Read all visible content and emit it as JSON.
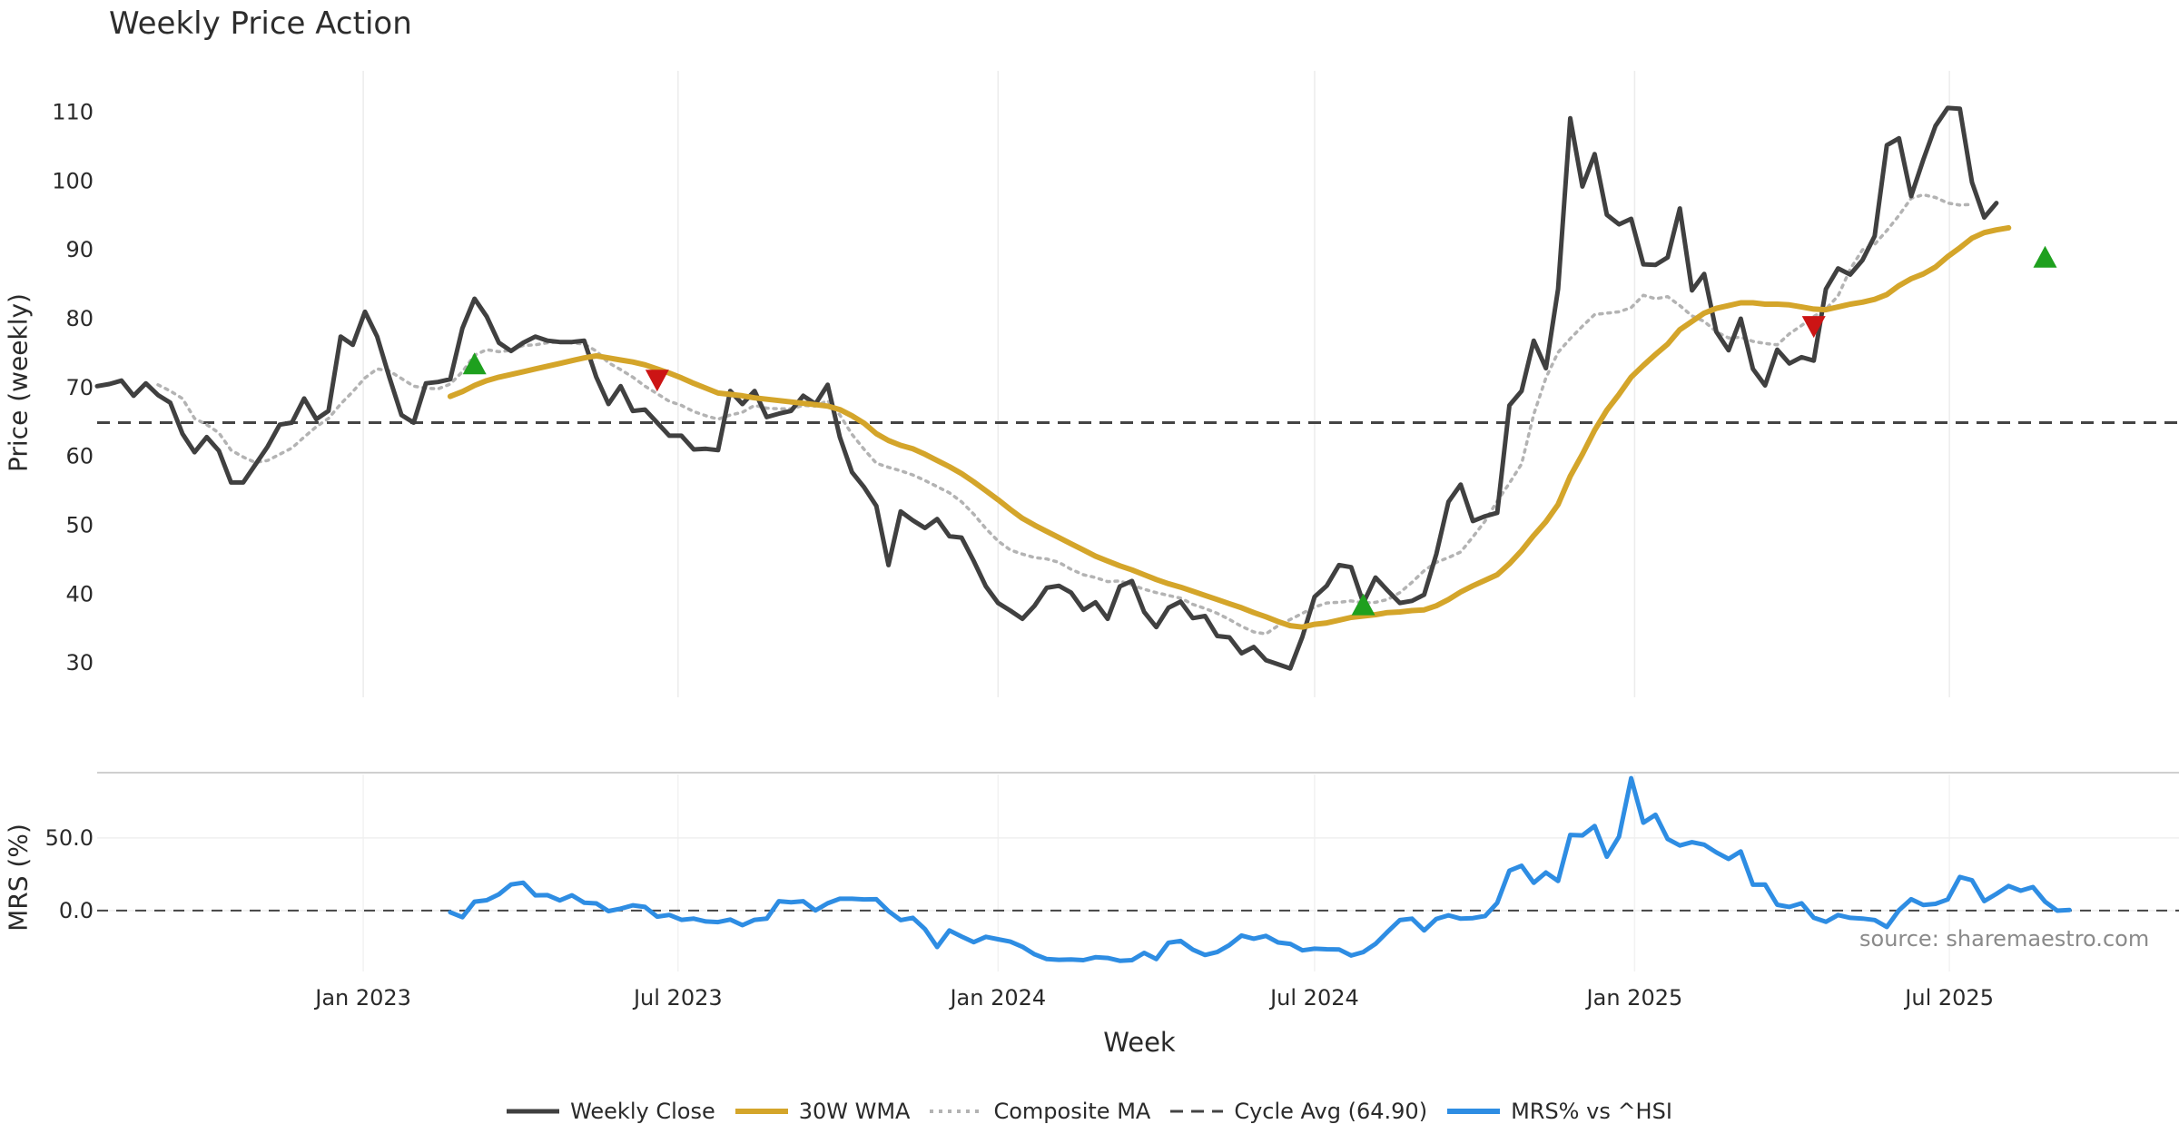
{
  "chart_data": {
    "type": "line",
    "title": "Weekly Price Action",
    "xlabel": "Week",
    "ylabel": "Price (weekly)",
    "ylabel_secondary": "MRS (%)",
    "x_tick_labels": [
      "Jan 2023",
      "Jul 2023",
      "Jan 2024",
      "Jul 2024",
      "Jan 2025",
      "Jul 2025"
    ],
    "y_ticks": [
      30,
      40,
      50,
      60,
      70,
      80,
      90,
      100,
      110
    ],
    "y_ticks_secondary": [
      "0.0",
      "50.0"
    ],
    "ylim": [
      25,
      116
    ],
    "ylim_secondary": [
      -42,
      95
    ],
    "week_start": "2022-08-01",
    "weeks": 172,
    "series": [
      {
        "name": "Weekly Close",
        "color": "#404040",
        "values": [
          70.2,
          70.5,
          71.0,
          68.8,
          70.6,
          68.9,
          67.8,
          63.3,
          60.6,
          62.8,
          60.8,
          56.2,
          56.2,
          58.8,
          61.4,
          64.6,
          64.9,
          68.4,
          65.4,
          66.6,
          77.4,
          76.2,
          81.0,
          77.4,
          71.5,
          66.0,
          64.9,
          70.6,
          70.8,
          71.2,
          78.6,
          82.9,
          80.3,
          76.5,
          75.3,
          76.5,
          77.4,
          76.8,
          76.6,
          76.6,
          76.8,
          71.5,
          67.6,
          70.2,
          66.6,
          66.8,
          64.9,
          63.0,
          63.0,
          61.0,
          61.1,
          60.9,
          69.5,
          67.6,
          69.5,
          65.7,
          66.2,
          66.6,
          68.8,
          67.6,
          70.4,
          62.8,
          57.7,
          55.5,
          52.8,
          44.2,
          52.0,
          50.7,
          49.6,
          50.9,
          48.4,
          48.2,
          44.8,
          41.1,
          38.7,
          37.6,
          36.4,
          38.3,
          40.9,
          41.2,
          40.2,
          37.7,
          38.8,
          36.4,
          41.1,
          41.9,
          37.4,
          35.2,
          38.0,
          38.9,
          36.5,
          36.8,
          33.9,
          33.7,
          31.4,
          32.3,
          30.4,
          29.8,
          29.2,
          33.8,
          39.6,
          41.2,
          44.2,
          43.9,
          38.7,
          42.4,
          40.5,
          38.7,
          39.0,
          39.9,
          45.8,
          53.4,
          55.9,
          50.6,
          51.3,
          51.8,
          67.4,
          69.5,
          76.8,
          72.8,
          84.3,
          109.1,
          99.2,
          103.9,
          95.1,
          93.7,
          94.5,
          87.9,
          87.8,
          88.9,
          96.0,
          84.1,
          86.5,
          78.1,
          75.4,
          80.0,
          72.7,
          70.3,
          75.5,
          73.5,
          74.4,
          73.9,
          84.3,
          87.3,
          86.4,
          88.5,
          92.0,
          105.2,
          106.2,
          97.8,
          103.1,
          108.0,
          110.6,
          110.5,
          99.8,
          94.7,
          96.8
        ]
      },
      {
        "name": "30W WMA",
        "color": "#d4a52a",
        "values": [
          null,
          null,
          null,
          null,
          null,
          null,
          null,
          null,
          null,
          null,
          null,
          null,
          null,
          null,
          null,
          null,
          null,
          null,
          null,
          null,
          null,
          null,
          null,
          null,
          null,
          null,
          null,
          null,
          null,
          68.7,
          69.4,
          70.3,
          71.0,
          71.5,
          71.9,
          72.3,
          72.7,
          73.1,
          73.5,
          73.9,
          74.3,
          74.6,
          74.3,
          74.0,
          73.7,
          73.3,
          72.7,
          72.1,
          71.4,
          70.6,
          69.9,
          69.2,
          69.0,
          68.8,
          68.5,
          68.3,
          68.1,
          67.9,
          67.7,
          67.5,
          67.3,
          66.8,
          65.9,
          64.8,
          63.3,
          62.3,
          61.6,
          61.1,
          60.3,
          59.4,
          58.5,
          57.5,
          56.3,
          55.0,
          53.7,
          52.3,
          51.0,
          50.0,
          49.1,
          48.2,
          47.3,
          46.4,
          45.5,
          44.8,
          44.1,
          43.5,
          42.8,
          42.1,
          41.5,
          41.0,
          40.4,
          39.8,
          39.2,
          38.6,
          38.0,
          37.3,
          36.7,
          36.0,
          35.4,
          35.2,
          35.6,
          35.8,
          36.2,
          36.6,
          36.8,
          37.0,
          37.3,
          37.4,
          37.6,
          37.7,
          38.3,
          39.2,
          40.3,
          41.2,
          42.0,
          42.8,
          44.4,
          46.3,
          48.5,
          50.5,
          53.0,
          57.1,
          60.3,
          63.8,
          66.7,
          69.0,
          71.5,
          73.2,
          74.8,
          76.3,
          78.4,
          79.6,
          80.8,
          81.5,
          81.9,
          82.3,
          82.3,
          82.1,
          82.1,
          82.0,
          81.7,
          81.4,
          81.3,
          81.7,
          82.1,
          82.4,
          82.8,
          83.5,
          84.8,
          85.8,
          86.5,
          87.5,
          89.0,
          90.3,
          91.7,
          92.5,
          92.9,
          93.2
        ]
      },
      {
        "name": "Composite MA",
        "color": "#b3b3b3",
        "dash": "3,6",
        "values": [
          null,
          null,
          null,
          null,
          null,
          70.4,
          69.5,
          68.4,
          65.5,
          64.6,
          63.4,
          60.9,
          59.9,
          59.1,
          59.4,
          60.3,
          61.2,
          62.8,
          64.3,
          65.5,
          67.6,
          69.4,
          71.4,
          72.7,
          72.4,
          71.3,
          70.2,
          69.9,
          69.8,
          70.5,
          72.3,
          74.7,
          75.5,
          75.2,
          75.4,
          76.1,
          76.2,
          76.5,
          76.6,
          76.5,
          76.3,
          75.3,
          73.6,
          72.6,
          71.5,
          70.2,
          69.1,
          68.0,
          67.4,
          66.5,
          65.9,
          65.4,
          66.0,
          66.4,
          67.4,
          67.0,
          66.9,
          66.9,
          67.4,
          67.3,
          68.1,
          66.0,
          63.2,
          61.0,
          59.0,
          58.4,
          57.9,
          57.3,
          56.5,
          55.6,
          54.7,
          53.4,
          51.6,
          49.5,
          47.7,
          46.4,
          45.8,
          45.3,
          45.1,
          44.6,
          43.6,
          42.8,
          42.4,
          41.8,
          41.9,
          41.3,
          40.7,
          40.2,
          39.8,
          39.4,
          38.5,
          37.9,
          37.2,
          36.3,
          35.3,
          34.5,
          34.2,
          35.4,
          36.3,
          37.2,
          38.1,
          38.7,
          38.8,
          39.0,
          38.7,
          38.8,
          39.2,
          40.2,
          41.7,
          43.4,
          44.6,
          45.3,
          46.1,
          48.3,
          50.6,
          53.5,
          56.1,
          58.9,
          66.1,
          71.4,
          75.1,
          77.1,
          78.9,
          80.6,
          80.8,
          81.0,
          81.6,
          83.4,
          82.9,
          83.2,
          81.9,
          80.4,
          79.6,
          78.1,
          77.2,
          77.3,
          76.7,
          76.4,
          76.2,
          77.8,
          79.0,
          80.3,
          81.4,
          83.3,
          87.2,
          90.0,
          90.8,
          92.8,
          95.0,
          97.5,
          98.0,
          97.6,
          96.8,
          96.5,
          96.6
        ]
      },
      {
        "name": "MRS% vs ^HSI",
        "color": "#2e8de3",
        "axis": "secondary",
        "values": [
          null,
          null,
          null,
          null,
          null,
          null,
          null,
          null,
          null,
          null,
          null,
          null,
          null,
          null,
          null,
          null,
          null,
          null,
          null,
          null,
          null,
          null,
          null,
          null,
          null,
          null,
          null,
          null,
          null,
          -1.2,
          -4.6,
          6.1,
          7.1,
          11.2,
          17.9,
          19.2,
          10.5,
          10.6,
          7.0,
          10.5,
          5.4,
          4.9,
          -0.4,
          1.3,
          3.6,
          2.5,
          -4.2,
          -3.0,
          -6.4,
          -5.6,
          -7.5,
          -8.0,
          -6.2,
          -10.1,
          -6.4,
          -5.6,
          6.4,
          5.7,
          6.4,
          0.1,
          5.0,
          8.1,
          8.1,
          7.7,
          7.8,
          -0.4,
          -6.6,
          -5.0,
          -12.8,
          -25.1,
          -13.7,
          -17.9,
          -21.8,
          -18.1,
          -19.8,
          -21.4,
          -25.0,
          -30.2,
          -33.4,
          -33.9,
          -33.7,
          -34.2,
          -32.2,
          -32.7,
          -34.6,
          -34.2,
          -29.2,
          -33.4,
          -22.2,
          -21.0,
          -26.9,
          -30.6,
          -28.6,
          -23.8,
          -17.2,
          -19.4,
          -17.5,
          -22.0,
          -23.0,
          -27.4,
          -26.3,
          -26.7,
          -26.8,
          -31.0,
          -28.6,
          -23.0,
          -14.6,
          -6.6,
          -5.6,
          -13.7,
          -5.8,
          -3.3,
          -5.6,
          -5.2,
          -3.8,
          5.3,
          27.5,
          30.8,
          19.1,
          26.2,
          20.4,
          52.1,
          51.8,
          58.2,
          37.1,
          50.9,
          91.2,
          60.5,
          66.0,
          49.3,
          44.8,
          47.1,
          45.4,
          40.1,
          35.6,
          40.7,
          17.8,
          17.9,
          4.0,
          2.5,
          5.0,
          -4.9,
          -7.8,
          -3.1,
          -5.0,
          -5.5,
          -6.5,
          -11.3,
          0.2,
          7.8,
          3.8,
          4.6,
          7.6,
          23.1,
          20.9,
          6.5,
          11.5,
          16.9,
          13.7,
          16.2,
          6.1,
          -0.1,
          0.4
        ]
      }
    ],
    "reference_lines": [
      {
        "name": "Cycle Avg (64.90)",
        "value": 64.9,
        "axis": "primary",
        "color": "#444444",
        "dash": "14,9"
      },
      {
        "name": "MRS zero",
        "value": 0,
        "axis": "secondary",
        "color": "#444444",
        "dash": "12,9"
      }
    ],
    "signals": [
      {
        "type": "buy",
        "week": 31,
        "value": 73.5,
        "color": "#1ea01e"
      },
      {
        "type": "sell",
        "week": 46,
        "value": 71.0,
        "color": "#cc1414"
      },
      {
        "type": "buy",
        "week": 104,
        "value": 38.5,
        "color": "#1ea01e"
      },
      {
        "type": "sell",
        "week": 141,
        "value": 78.8,
        "color": "#cc1414"
      },
      {
        "type": "buy",
        "week": 160,
        "value": 89.0,
        "color": "#1ea01e"
      }
    ],
    "legend": [
      "Weekly Close",
      "30W WMA",
      "Composite MA",
      "Cycle Avg (64.90)",
      "MRS% vs ^HSI"
    ],
    "legend_position": "bottom-center",
    "source_note": "source: sharemaestro.com"
  }
}
